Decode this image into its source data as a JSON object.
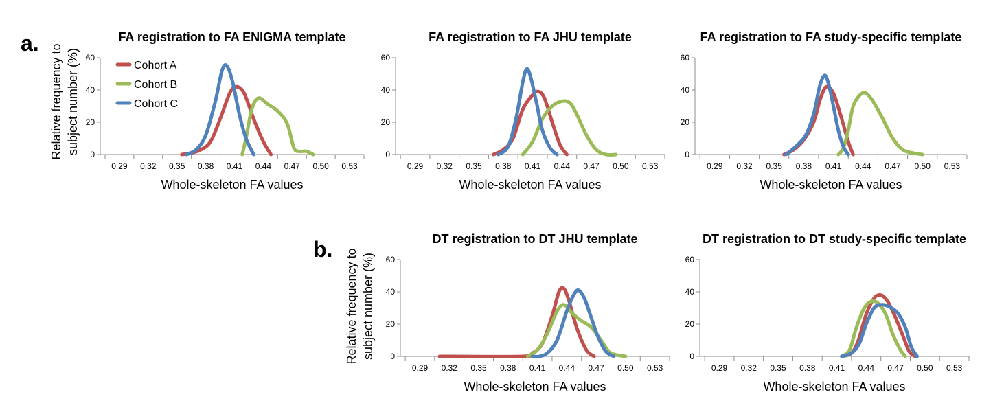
{
  "panel_labels": {
    "a": "a.",
    "b": "b."
  },
  "ylabel_lines": [
    "Relative frequency to",
    "subject number (%)"
  ],
  "legend": [
    {
      "name": "Cohort A",
      "color": "#c0504d"
    },
    {
      "name": "Cohort B",
      "color": "#9bbb59"
    },
    {
      "name": "Cohort C",
      "color": "#4f81bd"
    }
  ],
  "chart_data": [
    {
      "type": "line",
      "title": "FA registration to FA ENIGMA template",
      "xlabel": "Whole-skeleton FA values",
      "ylabel": "Relative frequency to subject number (%)",
      "x_ticks": [
        "0.29",
        "0.32",
        "0.35",
        "0.38",
        "0.41",
        "0.44",
        "0.47",
        "0.50",
        "0.53"
      ],
      "xlim": [
        0.27,
        0.545
      ],
      "y_ticks": [
        "0",
        "20",
        "40",
        "60"
      ],
      "ylim": [
        0,
        60
      ],
      "series": [
        {
          "name": "Cohort A",
          "x": [
            0.355,
            0.365,
            0.375,
            0.385,
            0.395,
            0.405,
            0.412,
            0.42,
            0.43,
            0.44,
            0.448
          ],
          "y": [
            0,
            1,
            3,
            8,
            22,
            38,
            42,
            38,
            22,
            8,
            0
          ]
        },
        {
          "name": "Cohort B",
          "x": [
            0.418,
            0.422,
            0.428,
            0.435,
            0.445,
            0.455,
            0.465,
            0.472,
            0.478,
            0.485,
            0.492
          ],
          "y": [
            0,
            10,
            28,
            35,
            31,
            27,
            19,
            4,
            2,
            2,
            0
          ]
        },
        {
          "name": "Cohort C",
          "x": [
            0.36,
            0.37,
            0.38,
            0.39,
            0.397,
            0.402,
            0.408,
            0.415,
            0.422,
            0.43
          ],
          "y": [
            0,
            3,
            12,
            33,
            52,
            55,
            45,
            25,
            10,
            0
          ]
        }
      ]
    },
    {
      "type": "line",
      "title": "FA registration to FA JHU template",
      "xlabel": "Whole-skeleton FA values",
      "ylabel": "",
      "x_ticks": [
        "0.29",
        "0.32",
        "0.35",
        "0.38",
        "0.41",
        "0.44",
        "0.47",
        "0.50",
        "0.53"
      ],
      "xlim": [
        0.27,
        0.545
      ],
      "y_ticks": [
        "0",
        "20",
        "40",
        "60"
      ],
      "ylim": [
        0,
        60
      ],
      "series": [
        {
          "name": "Cohort A",
          "x": [
            0.37,
            0.38,
            0.39,
            0.4,
            0.41,
            0.416,
            0.422,
            0.43,
            0.438,
            0.445
          ],
          "y": [
            0,
            3,
            10,
            28,
            37,
            39,
            35,
            20,
            6,
            0
          ]
        },
        {
          "name": "Cohort B",
          "x": [
            0.4,
            0.41,
            0.42,
            0.43,
            0.44,
            0.448,
            0.455,
            0.465,
            0.475,
            0.485,
            0.495
          ],
          "y": [
            0,
            8,
            22,
            30,
            33,
            32,
            25,
            12,
            3,
            0,
            0
          ]
        },
        {
          "name": "Cohort C",
          "x": [
            0.375,
            0.385,
            0.393,
            0.4,
            0.404,
            0.408,
            0.414,
            0.42,
            0.428,
            0.435
          ],
          "y": [
            0,
            5,
            22,
            45,
            53,
            48,
            32,
            15,
            4,
            0
          ]
        }
      ]
    },
    {
      "type": "line",
      "title": "FA registration to FA study-specific template",
      "xlabel": "Whole-skeleton FA values",
      "ylabel": "",
      "x_ticks": [
        "0.29",
        "0.32",
        "0.35",
        "0.38",
        "0.41",
        "0.44",
        "0.47",
        "0.50",
        "0.53"
      ],
      "xlim": [
        0.27,
        0.545
      ],
      "y_ticks": [
        "0",
        "20",
        "40",
        "60"
      ],
      "ylim": [
        0,
        60
      ],
      "series": [
        {
          "name": "Cohort A",
          "x": [
            0.36,
            0.37,
            0.38,
            0.39,
            0.397,
            0.403,
            0.41,
            0.417,
            0.425,
            0.43
          ],
          "y": [
            0,
            3,
            9,
            20,
            35,
            42,
            38,
            25,
            8,
            0
          ]
        },
        {
          "name": "Cohort B",
          "x": [
            0.415,
            0.42,
            0.425,
            0.43,
            0.437,
            0.443,
            0.45,
            0.46,
            0.47,
            0.48,
            0.49,
            0.5
          ],
          "y": [
            0,
            4,
            15,
            30,
            37,
            38,
            33,
            22,
            10,
            3,
            1,
            0
          ]
        },
        {
          "name": "Cohort C",
          "x": [
            0.362,
            0.372,
            0.382,
            0.39,
            0.396,
            0.401,
            0.405,
            0.41,
            0.415,
            0.42,
            0.425
          ],
          "y": [
            0,
            5,
            12,
            25,
            42,
            49,
            44,
            30,
            15,
            5,
            0
          ]
        }
      ]
    },
    {
      "type": "line",
      "title": "DT registration to DT JHU template",
      "xlabel": "Whole-skeleton FA values",
      "ylabel": "Relative frequency to subject number (%)",
      "x_ticks": [
        "0.29",
        "0.32",
        "0.35",
        "0.38",
        "0.41",
        "0.44",
        "0.47",
        "0.50",
        "0.53"
      ],
      "xlim": [
        0.27,
        0.545
      ],
      "y_ticks": [
        "0",
        "20",
        "40",
        "60"
      ],
      "ylim": [
        0,
        60
      ],
      "series": [
        {
          "name": "Cohort A",
          "x": [
            0.31,
            0.32,
            0.395,
            0.405,
            0.415,
            0.425,
            0.432,
            0.437,
            0.442,
            0.45,
            0.46,
            0.468
          ],
          "y": [
            0,
            0,
            0,
            2,
            8,
            25,
            40,
            42,
            35,
            18,
            4,
            0
          ]
        },
        {
          "name": "Cohort B",
          "x": [
            0.4,
            0.41,
            0.42,
            0.43,
            0.437,
            0.445,
            0.455,
            0.465,
            0.475,
            0.483,
            0.49,
            0.5
          ],
          "y": [
            0,
            4,
            14,
            28,
            32,
            27,
            22,
            18,
            10,
            3,
            1,
            0
          ]
        },
        {
          "name": "Cohort C",
          "x": [
            0.405,
            0.412,
            0.42,
            0.43,
            0.44,
            0.447,
            0.452,
            0.458,
            0.465,
            0.472,
            0.48,
            0.488
          ],
          "y": [
            0,
            0,
            2,
            10,
            28,
            38,
            41,
            36,
            24,
            12,
            3,
            0
          ]
        }
      ]
    },
    {
      "type": "line",
      "title": "DT registration to DT study-specific template",
      "xlabel": "Whole-skeleton FA values",
      "ylabel": "",
      "x_ticks": [
        "0.29",
        "0.32",
        "0.35",
        "0.38",
        "0.41",
        "0.44",
        "0.47",
        "0.50",
        "0.53"
      ],
      "xlim": [
        0.27,
        0.545
      ],
      "y_ticks": [
        "0",
        "20",
        "40",
        "60"
      ],
      "ylim": [
        0,
        60
      ],
      "series": [
        {
          "name": "Cohort A",
          "x": [
            0.415,
            0.425,
            0.432,
            0.44,
            0.448,
            0.455,
            0.462,
            0.47,
            0.478,
            0.484,
            0.49
          ],
          "y": [
            0,
            2,
            10,
            26,
            36,
            38,
            34,
            24,
            12,
            3,
            0
          ]
        },
        {
          "name": "Cohort B",
          "x": [
            0.415,
            0.423,
            0.43,
            0.438,
            0.445,
            0.452,
            0.46,
            0.467,
            0.475,
            0.48
          ],
          "y": [
            0,
            4,
            18,
            30,
            34,
            33,
            26,
            14,
            4,
            0
          ]
        },
        {
          "name": "Cohort C",
          "x": [
            0.415,
            0.425,
            0.433,
            0.44,
            0.448,
            0.455,
            0.463,
            0.472,
            0.48,
            0.486,
            0.492
          ],
          "y": [
            0,
            2,
            8,
            20,
            30,
            32,
            31,
            27,
            18,
            6,
            0
          ]
        }
      ]
    }
  ]
}
